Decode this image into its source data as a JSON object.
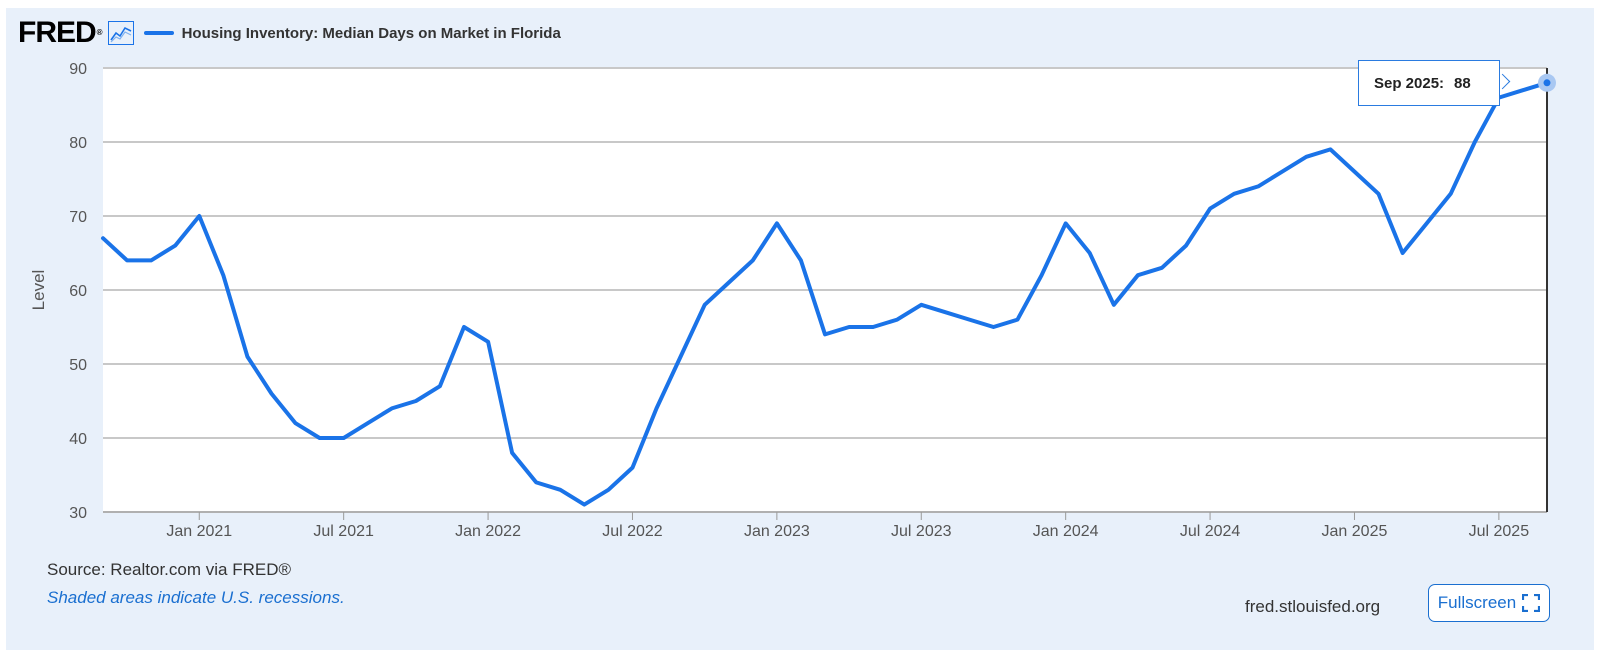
{
  "header": {
    "logo": "FRED",
    "logo_reg": "®",
    "series_title": "Housing Inventory: Median Days on Market in Florida"
  },
  "colors": {
    "line": "#1a73e8",
    "panel": "#e8f0fa",
    "accent": "#1a6fd0"
  },
  "icons": {
    "logo_graph": "line-graph-icon",
    "fullscreen": "expand-icon"
  },
  "tooltip": {
    "date": "Sep 2025:",
    "value": "88"
  },
  "footer": {
    "source": "Source: Realtor.com via FRED®",
    "shaded_note": "Shaded areas indicate U.S. recessions.",
    "site": "fred.stlouisfed.org",
    "fullscreen_label": "Fullscreen"
  },
  "chart_data": {
    "type": "line",
    "title": "Housing Inventory: Median Days on Market in Florida",
    "xlabel": "",
    "ylabel": "Level",
    "ylim": [
      30,
      90
    ],
    "y_ticks": [
      30,
      40,
      50,
      60,
      70,
      80,
      90
    ],
    "x_range": [
      "2020-09",
      "2025-09"
    ],
    "x_ticks": [
      {
        "label": "Jan 2021",
        "date": "2021-01"
      },
      {
        "label": "Jul 2021",
        "date": "2021-07"
      },
      {
        "label": "Jan 2022",
        "date": "2022-01"
      },
      {
        "label": "Jul 2022",
        "date": "2022-07"
      },
      {
        "label": "Jan 2023",
        "date": "2023-01"
      },
      {
        "label": "Jul 2023",
        "date": "2023-07"
      },
      {
        "label": "Jan 2024",
        "date": "2024-01"
      },
      {
        "label": "Jul 2024",
        "date": "2024-07"
      },
      {
        "label": "Jan 2025",
        "date": "2025-01"
      },
      {
        "label": "Jul 2025",
        "date": "2025-07"
      }
    ],
    "grid": true,
    "legend": "top-left",
    "series": [
      {
        "name": "Housing Inventory: Median Days on Market in Florida",
        "x": [
          "2020-09",
          "2020-10",
          "2020-11",
          "2020-12",
          "2021-01",
          "2021-02",
          "2021-03",
          "2021-04",
          "2021-05",
          "2021-06",
          "2021-07",
          "2021-08",
          "2021-09",
          "2021-10",
          "2021-11",
          "2021-12",
          "2022-01",
          "2022-02",
          "2022-03",
          "2022-04",
          "2022-05",
          "2022-06",
          "2022-07",
          "2022-08",
          "2022-09",
          "2022-10",
          "2022-11",
          "2022-12",
          "2023-01",
          "2023-02",
          "2023-03",
          "2023-04",
          "2023-05",
          "2023-06",
          "2023-07",
          "2023-08",
          "2023-09",
          "2023-10",
          "2023-11",
          "2023-12",
          "2024-01",
          "2024-02",
          "2024-03",
          "2024-04",
          "2024-05",
          "2024-06",
          "2024-07",
          "2024-08",
          "2024-09",
          "2024-10",
          "2024-11",
          "2024-12",
          "2025-01",
          "2025-02",
          "2025-03",
          "2025-04",
          "2025-05",
          "2025-06",
          "2025-07",
          "2025-08",
          "2025-09"
        ],
        "values": [
          67,
          64,
          64,
          66,
          70,
          62,
          51,
          46,
          42,
          40,
          40,
          42,
          44,
          45,
          47,
          55,
          53,
          38,
          34,
          33,
          31,
          33,
          36,
          44,
          51,
          58,
          61,
          64,
          69,
          64,
          54,
          55,
          55,
          56,
          58,
          57,
          56,
          55,
          56,
          62,
          69,
          65,
          58,
          62,
          63,
          66,
          71,
          73,
          74,
          76,
          78,
          79,
          76,
          73,
          65,
          69,
          73,
          80,
          86,
          87,
          88
        ]
      }
    ]
  }
}
